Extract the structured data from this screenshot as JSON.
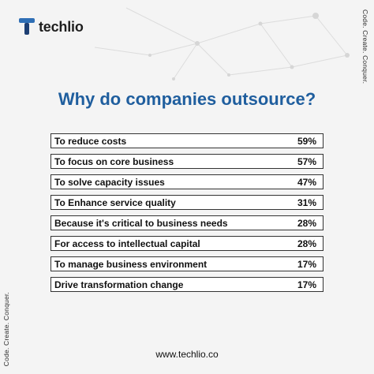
{
  "brand": {
    "name": "techlio",
    "tagline": "Code. Create. Conquer.",
    "accent": "#1f5e9e"
  },
  "title": "Why do companies outsource?",
  "rows": [
    {
      "label": "To reduce costs",
      "value": "59%"
    },
    {
      "label": "To focus on core business",
      "value": "57%"
    },
    {
      "label": "To solve capacity issues",
      "value": "47%"
    },
    {
      "label": "To Enhance service quality",
      "value": "31%"
    },
    {
      "label": "Because it's critical to business needs",
      "value": "28%"
    },
    {
      "label": "For access to intellectual capital",
      "value": "28%"
    },
    {
      "label": "To manage business environment",
      "value": "17%"
    },
    {
      "label": "Drive transformation change",
      "value": "17%"
    }
  ],
  "footer": {
    "url": "www.techlio.co"
  }
}
